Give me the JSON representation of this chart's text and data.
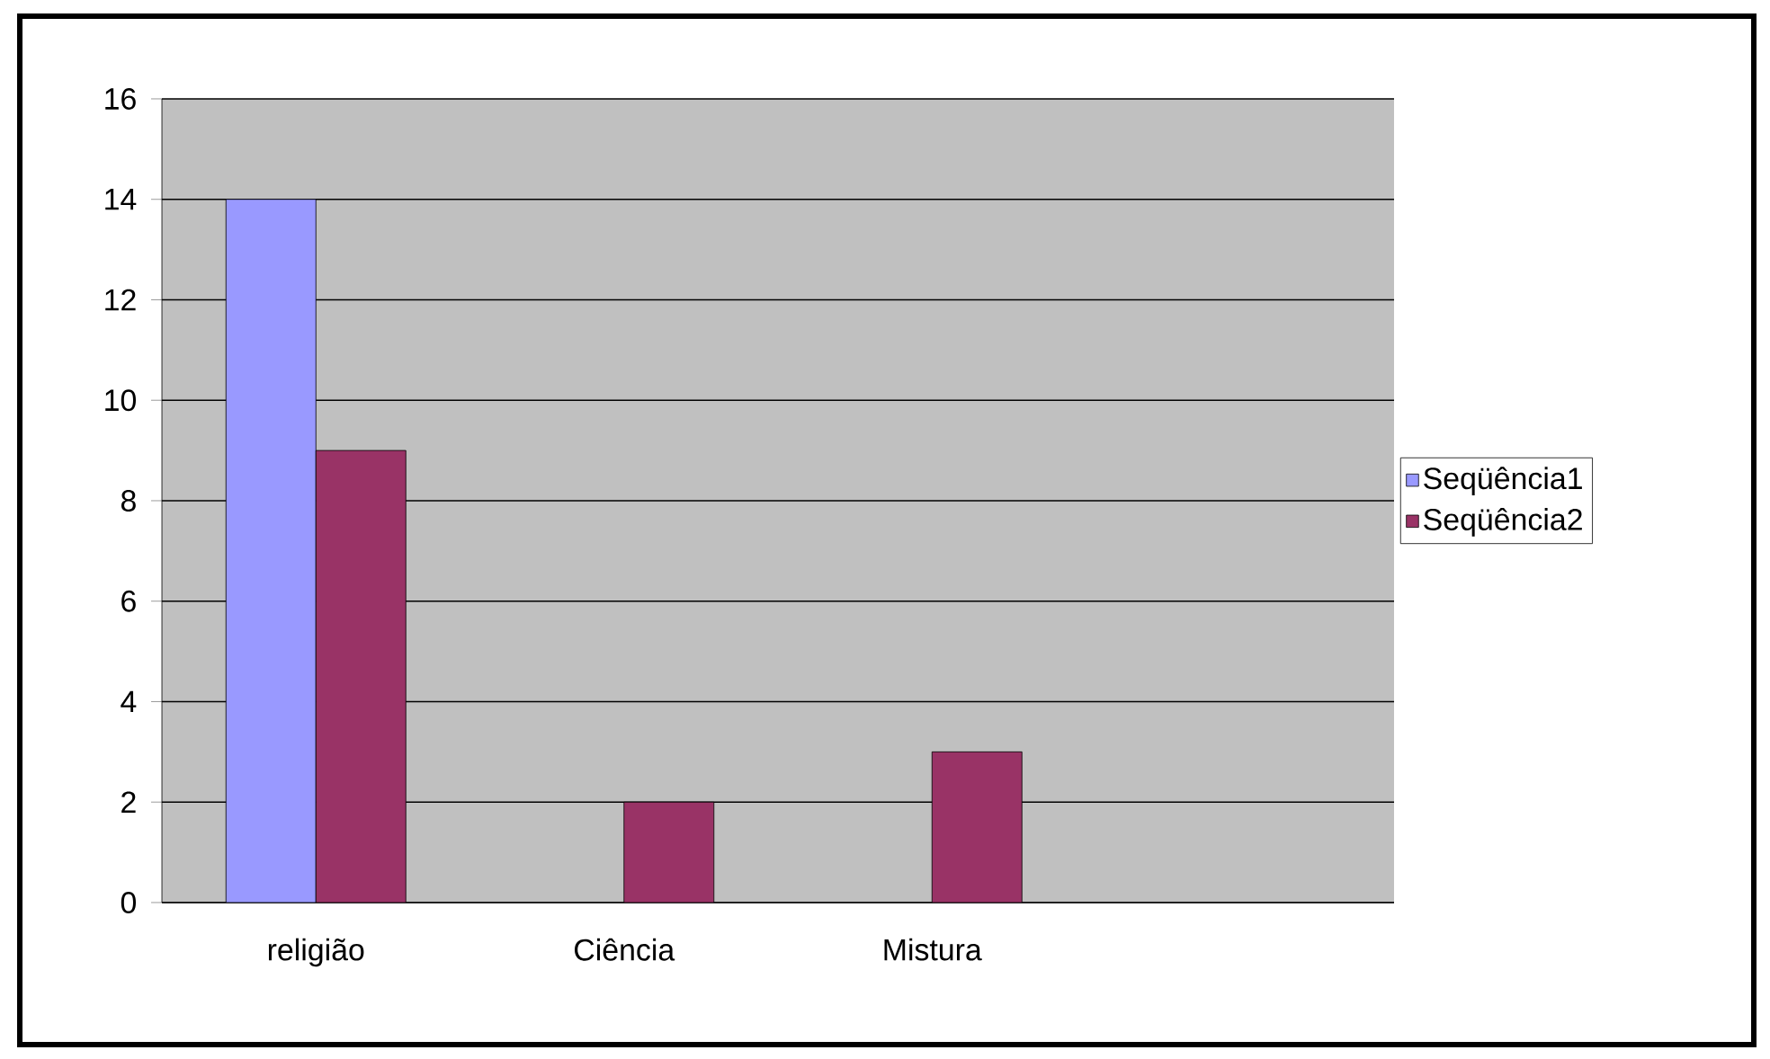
{
  "chart_data": {
    "type": "bar",
    "categories": [
      "religião",
      "Ciência",
      "Mistura",
      null
    ],
    "series": [
      {
        "name": "Seqüência1",
        "color": "#9999ff",
        "values": [
          14,
          null,
          null,
          null
        ]
      },
      {
        "name": "Seqüência2",
        "color": "#993366",
        "values": [
          9,
          2,
          3,
          null
        ]
      }
    ],
    "ylim": [
      0,
      16
    ],
    "yticks": [
      0,
      2,
      4,
      6,
      8,
      10,
      12,
      14,
      16
    ],
    "grid": "y",
    "legend": "right"
  }
}
